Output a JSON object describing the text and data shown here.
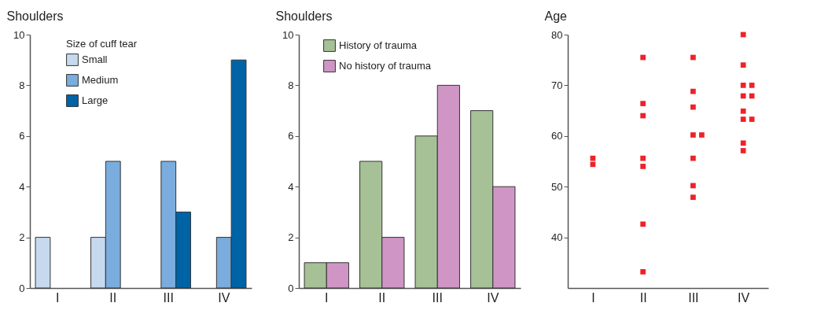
{
  "chart_data": [
    {
      "type": "bar",
      "ylabel": "Shoulders",
      "legend_title": "Size of cuff tear",
      "legend": "top left",
      "categories": [
        "I",
        "II",
        "III",
        "IV"
      ],
      "ylim": [
        0,
        10
      ],
      "yticks": [
        0,
        2,
        4,
        6,
        8,
        10
      ],
      "series": [
        {
          "name": "Small",
          "color": "#c6d9ef",
          "values": [
            2,
            2,
            null,
            null
          ]
        },
        {
          "name": "Medium",
          "color": "#7aacdd",
          "values": [
            null,
            5,
            5,
            2
          ]
        },
        {
          "name": "Large",
          "color": "#0063a6",
          "values": [
            null,
            null,
            3,
            9
          ]
        }
      ]
    },
    {
      "type": "bar",
      "ylabel": "Shoulders",
      "legend": "top left",
      "categories": [
        "I",
        "II",
        "III",
        "IV"
      ],
      "ylim": [
        0,
        10
      ],
      "yticks": [
        0,
        2,
        4,
        6,
        8,
        10
      ],
      "series": [
        {
          "name": "History of trauma",
          "color": "#a6c196",
          "values": [
            1,
            5,
            6,
            7
          ]
        },
        {
          "name": "No history of trauma",
          "color": "#cf96c5",
          "values": [
            1,
            2,
            8,
            4
          ]
        }
      ]
    },
    {
      "type": "scatter",
      "ylabel": "Age",
      "marker": "square",
      "categories": [
        "I",
        "II",
        "III",
        "IV"
      ],
      "ylim": [
        30,
        80
      ],
      "yticks": [
        40,
        50,
        60,
        70,
        80
      ],
      "series": [
        {
          "color": "#ee2229",
          "x": [
            "I",
            "I",
            "II",
            "II",
            "II",
            "II",
            "II",
            "II",
            "II",
            "III",
            "III",
            "III",
            "III",
            "III",
            "III",
            "III",
            "IV",
            "IV",
            "IV",
            "IV",
            "IV",
            "IV",
            "IV",
            "IV"
          ],
          "values": [
            55.6,
            54.4,
            75.5,
            66.4,
            64.0,
            55.6,
            54.0,
            42.6,
            33.2,
            75.5,
            68.8,
            65.7,
            60.2,
            55.6,
            50.2,
            47.9,
            80,
            74.0,
            70,
            67.9,
            64.9,
            63.3,
            58.6,
            57.1
          ]
        },
        {
          "color": "#ee2229",
          "x": [
            "III",
            "IV",
            "IV",
            "IV"
          ],
          "values": [
            60.2,
            70,
            67.9,
            63.3
          ]
        }
      ]
    }
  ]
}
